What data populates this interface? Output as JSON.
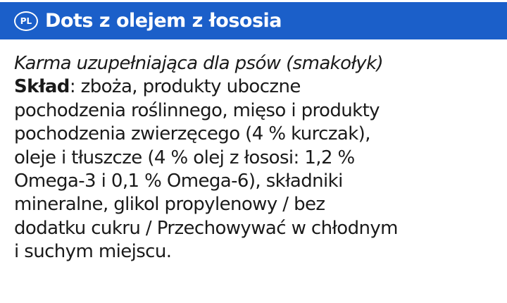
{
  "header": {
    "language_badge": "PL",
    "title": "Dots z olejem z łososia",
    "color": "#1b5fc9"
  },
  "label": {
    "subtitle": "Karma uzupełniająca dla psów (smakołyk)",
    "composition_label": "Skład",
    "lines": [
      ": zboża, produkty uboczne",
      "pochodzenia roślinnego, mięso i produkty",
      "pochodzenia zwierzęcego (4 % kurczak),",
      "oleje i tłuszcze (4 % olej z łososi: 1,2 %",
      "Omega-3 i 0,1 % Omega-6), składniki",
      "mineralne, glikol propylenowy / bez",
      "dodatku cukru / Przechowywać w chłodnym",
      "i suchym miejscu."
    ]
  }
}
